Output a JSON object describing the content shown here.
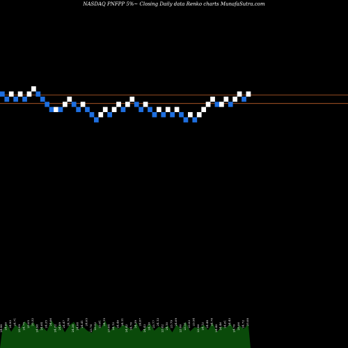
{
  "chart_data": {
    "type": "renko",
    "title": "NASDAQ PNFPP 5%~  Closing Daily data  Renko  charts MunafaSutra.com",
    "up_color": "#ffffff",
    "down_color": "#1e6fe0",
    "level_line_color": "#c0602a",
    "volume_color": "#0a4a0a",
    "level_lines": [
      25.1,
      24.6
    ],
    "y_range": [
      12.0,
      29.0
    ],
    "bricks": [
      {
        "dir": "down",
        "low": 25.0
      },
      {
        "dir": "down",
        "low": 24.7
      },
      {
        "dir": "up",
        "low": 25.0
      },
      {
        "dir": "down",
        "low": 24.7
      },
      {
        "dir": "up",
        "low": 25.0
      },
      {
        "dir": "down",
        "low": 24.7
      },
      {
        "dir": "up",
        "low": 25.0
      },
      {
        "dir": "up",
        "low": 25.3
      },
      {
        "dir": "down",
        "low": 25.0
      },
      {
        "dir": "down",
        "low": 24.7
      },
      {
        "dir": "down",
        "low": 24.4
      },
      {
        "dir": "down",
        "low": 24.1
      },
      {
        "dir": "up",
        "low": 24.1
      },
      {
        "dir": "down",
        "low": 24.1
      },
      {
        "dir": "up",
        "low": 24.4
      },
      {
        "dir": "up",
        "low": 24.7
      },
      {
        "dir": "down",
        "low": 24.4
      },
      {
        "dir": "down",
        "low": 24.1
      },
      {
        "dir": "up",
        "low": 24.4
      },
      {
        "dir": "down",
        "low": 24.1
      },
      {
        "dir": "down",
        "low": 23.8
      },
      {
        "dir": "down",
        "low": 23.5
      },
      {
        "dir": "up",
        "low": 23.8
      },
      {
        "dir": "up",
        "low": 24.1
      },
      {
        "dir": "down",
        "low": 23.8
      },
      {
        "dir": "up",
        "low": 24.1
      },
      {
        "dir": "up",
        "low": 24.4
      },
      {
        "dir": "down",
        "low": 24.1
      },
      {
        "dir": "up",
        "low": 24.4
      },
      {
        "dir": "up",
        "low": 24.7
      },
      {
        "dir": "down",
        "low": 24.4
      },
      {
        "dir": "down",
        "low": 24.1
      },
      {
        "dir": "up",
        "low": 24.4
      },
      {
        "dir": "down",
        "low": 24.1
      },
      {
        "dir": "down",
        "low": 23.8
      },
      {
        "dir": "up",
        "low": 24.1
      },
      {
        "dir": "down",
        "low": 23.8
      },
      {
        "dir": "up",
        "low": 24.1
      },
      {
        "dir": "down",
        "low": 23.8
      },
      {
        "dir": "up",
        "low": 24.1
      },
      {
        "dir": "down",
        "low": 23.8
      },
      {
        "dir": "down",
        "low": 23.5
      },
      {
        "dir": "up",
        "low": 23.8
      },
      {
        "dir": "down",
        "low": 23.5
      },
      {
        "dir": "up",
        "low": 23.8
      },
      {
        "dir": "up",
        "low": 24.1
      },
      {
        "dir": "up",
        "low": 24.4
      },
      {
        "dir": "up",
        "low": 24.7
      },
      {
        "dir": "down",
        "low": 24.4
      },
      {
        "dir": "up",
        "low": 24.4
      },
      {
        "dir": "up",
        "low": 24.7
      },
      {
        "dir": "down",
        "low": 24.4
      },
      {
        "dir": "up",
        "low": 24.7
      },
      {
        "dir": "up",
        "low": 25.0
      },
      {
        "dir": "down",
        "low": 24.7
      },
      {
        "dir": "up",
        "low": 25.0
      }
    ],
    "volume": [
      30,
      42,
      28,
      40,
      33,
      46,
      38,
      44,
      31,
      36,
      29,
      48,
      35,
      41,
      27,
      39,
      45,
      32,
      37,
      30,
      26,
      43,
      34,
      47,
      29,
      38,
      33,
      40,
      36,
      31,
      44,
      28,
      35,
      42,
      30,
      37,
      33,
      39,
      27,
      41,
      32,
      45,
      29,
      36,
      34,
      40,
      31,
      43,
      28,
      37,
      35,
      42,
      30,
      39,
      33,
      41
    ],
    "tick_labels": [
      "24.90",
      "24.60",
      "24.93",
      "24.71",
      "25.09",
      "24.75",
      "25.05",
      "25.32",
      "24.98",
      "24.64",
      "24.35",
      "24.06",
      "24.22",
      "24.09",
      "24.47",
      "24.76",
      "24.38",
      "24.08",
      "24.41",
      "24.05",
      "23.76",
      "23.52",
      "23.81",
      "24.15",
      "23.84",
      "24.12",
      "24.48",
      "24.11",
      "24.42",
      "24.76",
      "24.39",
      "24.07",
      "24.43",
      "24.10",
      "23.77",
      "24.13",
      "23.82",
      "24.10",
      "23.79",
      "24.09",
      "23.80",
      "23.51",
      "23.83",
      "23.54",
      "23.86",
      "24.12",
      "24.44",
      "24.78",
      "24.40",
      "24.46",
      "24.81",
      "24.43",
      "24.76",
      "25.06",
      "24.72",
      "25.08"
    ]
  }
}
